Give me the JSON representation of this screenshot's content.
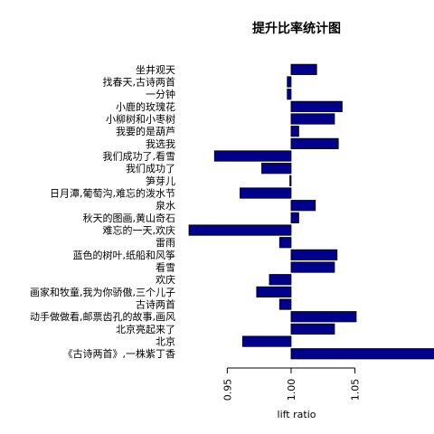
{
  "chart_data": {
    "type": "bar",
    "orientation": "horizontal",
    "title": "提升比率统计图",
    "xlabel": "lift ratio",
    "ylabel": "",
    "baseline": 1.0,
    "xlim": [
      0.92,
      1.13
    ],
    "xticks": [
      0.95,
      1.0,
      1.05
    ],
    "xtick_labels": [
      "0.95",
      "1.00",
      "1.05"
    ],
    "bar_color": "#00008B",
    "grid": false,
    "categories": [
      "坐井观天",
      "找春天,古诗两首",
      "一分钟",
      "小鹿的玫瑰花",
      "小柳树和小枣树",
      "我要的是葫芦",
      "我选我",
      "我们成功了,看雪",
      "我们成功了",
      "笋芽儿",
      "日月潭,葡萄沟,难忘的泼水节",
      "泉水",
      "秋天的图画,黄山奇石",
      "难忘的一天,欢庆",
      "雷雨",
      "蓝色的树叶,纸船和风筝",
      "看雪",
      "欢庆",
      "画家和牧童,我为你骄傲,三个儿子",
      "古诗两首",
      "动手做做看,邮票齿孔的故事,画风",
      "北京亮起来了",
      "北京",
      "《古诗两首》,一株紫丁香"
    ],
    "values": [
      1.02,
      0.997,
      0.997,
      1.04,
      1.034,
      1.006,
      1.037,
      0.94,
      0.977,
      0.999,
      0.96,
      1.019,
      1.006,
      0.92,
      0.991,
      1.036,
      1.034,
      0.983,
      0.973,
      0.991,
      1.051,
      1.034,
      0.962,
      1.134
    ]
  }
}
